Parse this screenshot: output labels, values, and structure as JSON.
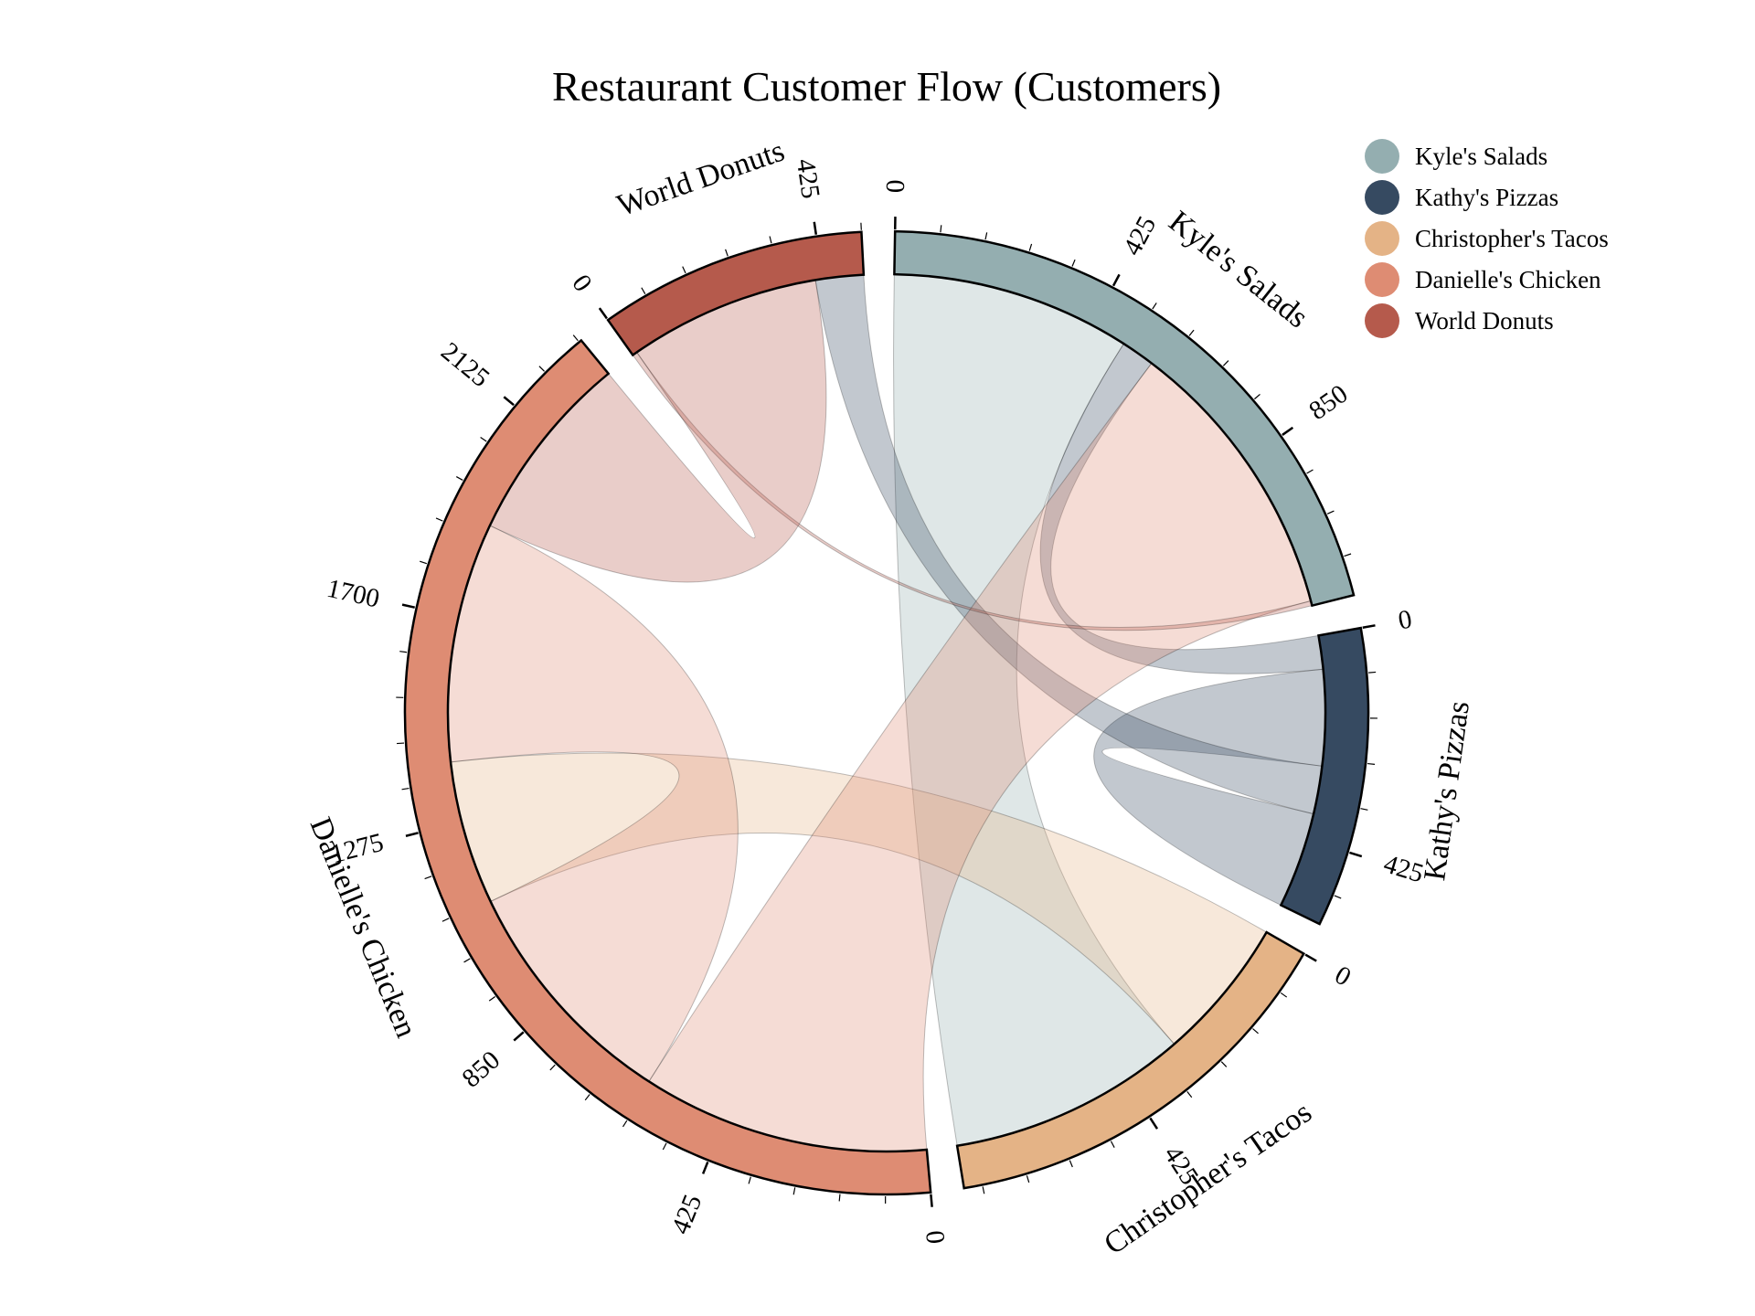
{
  "chart_data": {
    "type": "chord",
    "title": "Restaurant Customer Flow (Customers)",
    "groups": [
      {
        "name": "Kyle's Salads",
        "color": "#94AEB0"
      },
      {
        "name": "Kathy's Pizzas",
        "color": "#364A61"
      },
      {
        "name": "Christopher's Tacos",
        "color": "#E4B386"
      },
      {
        "name": "Danielle's Chicken",
        "color": "#DE8C73"
      },
      {
        "name": "World Donuts",
        "color": "#B55A4C"
      }
    ],
    "flows": [
      {
        "source": "Kyle's Salads",
        "target": "Christopher's Tacos",
        "value": 500
      },
      {
        "source": "Kathy's Pizzas",
        "target": "Kathy's Pizzas",
        "value": 200
      },
      {
        "source": "Kathy's Pizzas",
        "target": "Kyle's Salads",
        "value": 70
      },
      {
        "source": "Kathy's Pizzas",
        "target": "World Donuts",
        "value": 100
      },
      {
        "source": "Christopher's Tacos",
        "target": "Danielle's Chicken",
        "value": 300
      },
      {
        "source": "Danielle's Chicken",
        "target": "Kyle's Salads",
        "value": 600
      },
      {
        "source": "Danielle's Chicken",
        "target": "Danielle's Chicken",
        "value": 500
      },
      {
        "source": "World Donuts",
        "target": "Kyle's Salads",
        "value": 10
      },
      {
        "source": "World Donuts",
        "target": "Danielle's Chicken",
        "value": 400
      }
    ],
    "tick_step": 425,
    "tick_labels": [
      "0",
      "425",
      "850",
      "1275"
    ],
    "legend": {
      "position": "top-right"
    }
  }
}
